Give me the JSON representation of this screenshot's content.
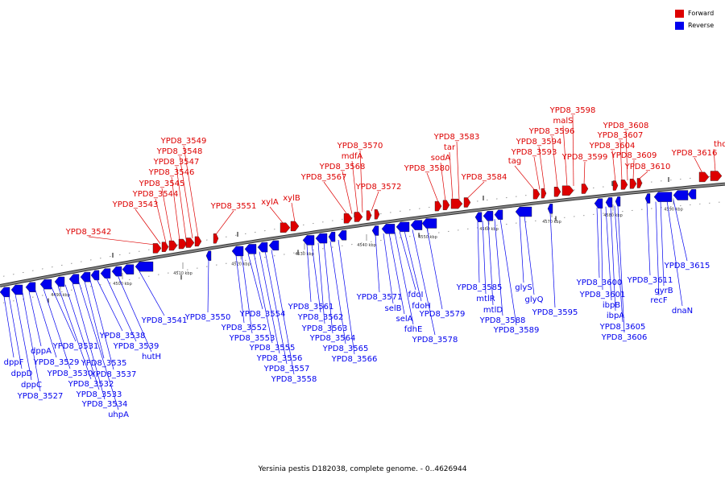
{
  "legend": [
    {
      "label": "Forward",
      "color": "#dd0000"
    },
    {
      "label": "Reverse",
      "color": "#0000ee"
    }
  ],
  "caption": "Yersinia pestis D182038, complete genome. - 0..4626944",
  "colors": {
    "forward": "#dd0000",
    "reverse": "#0000ee",
    "backbone": "#888888",
    "backbone_edge": "#333333"
  },
  "ticks": [
    "4490 kbp",
    "4500 kbp",
    "4510 kbp",
    "4520 kbp",
    "4530 kbp",
    "4540 kbp",
    "4550 kbp",
    "4560 kbp",
    "4570 kbp",
    "4580 kbp",
    "4590 kbp"
  ],
  "forward_labels": [
    "YPD8_3542",
    "YPD8_3543",
    "YPD8_3544",
    "YPD8_3545",
    "YPD8_3546",
    "YPD8_3547",
    "YPD8_3548",
    "YPD8_3549",
    "YPD8_3551",
    "xylA",
    "xylB",
    "YPD8_3567",
    "YPD8_3568",
    "mdfA",
    "YPD8_3570",
    "YPD8_3572",
    "YPD8_3580",
    "sodA",
    "tar",
    "YPD8_3583",
    "YPD8_3584",
    "tag",
    "YPD8_3593",
    "YPD8_3594",
    "YPD8_3596",
    "malS",
    "YPD8_3598",
    "YPD8_3599",
    "YPD8_3604",
    "YPD8_3607",
    "YPD8_3608",
    "YPD8_3609",
    "YPD8_3610",
    "YPD8_3616",
    "thdF"
  ],
  "reverse_labels": [
    "dppF",
    "dppD",
    "dppC",
    "YPD8_3527",
    "dppA",
    "YPD8_3529",
    "YPD8_3530",
    "YPD8_3531",
    "YPD8_3532",
    "YPD8_3533",
    "YPD8_3534",
    "uhpA",
    "YPD8_3535",
    "YPD8_3537",
    "YPD8_3538",
    "YPD8_3539",
    "hutH",
    "YPD8_3541",
    "YPD8_3550",
    "YPD8_3552",
    "YPD8_3553",
    "YPD8_3554",
    "YPD8_3555",
    "YPD8_3556",
    "YPD8_3557",
    "YPD8_3558",
    "YPD8_3561",
    "YPD8_3562",
    "YPD8_3563",
    "YPD8_3564",
    "YPD8_3565",
    "YPD8_3566",
    "YPD8_3571",
    "selB",
    "selA",
    "fdhE",
    "fdoI",
    "fdoH",
    "YPD8_3578",
    "YPD8_3579",
    "YPD8_3585",
    "mtlR",
    "mtlD",
    "YPD8_3588",
    "YPD8_3589",
    "glyS",
    "glyQ",
    "YPD8_3595",
    "YPD8_3600",
    "YPD8_3601",
    "ibpB",
    "ibpA",
    "YPD8_3605",
    "YPD8_3606",
    "YPD8_3611",
    "recF",
    "gyrB",
    "dnaN",
    "YPD8_3615"
  ]
}
